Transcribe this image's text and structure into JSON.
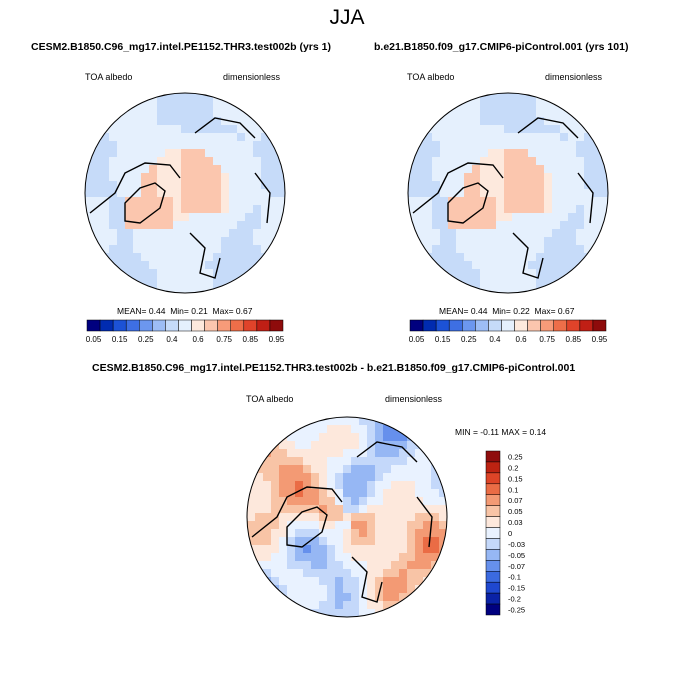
{
  "figure": {
    "title": "JJA",
    "colors": {
      "abs_scale": [
        "#00007f",
        "#002bb0",
        "#1c52d6",
        "#3e6fe3",
        "#6c97ef",
        "#9dbdf5",
        "#c6dbf9",
        "#e5f0fd",
        "#fde9dd",
        "#fbc6ae",
        "#f79b79",
        "#ee6e49",
        "#e0432a",
        "#c01f15",
        "#8e0b0b"
      ],
      "diff_scale": [
        "#00007f",
        "#0a22a6",
        "#1f48cf",
        "#3b6ae0",
        "#6690ec",
        "#96b7f4",
        "#c4d8fa",
        "#e9f2ff",
        "#fde8dc",
        "#f8c4a6",
        "#f39a74",
        "#ea6c45",
        "#dd4427",
        "#bd2312",
        "#8f0d0d"
      ],
      "land_outline": "#000000"
    }
  },
  "chart_data": [
    {
      "type": "heatmap",
      "projection": "north-polar-stereographic",
      "title": "CESM2.B1850.C96_mg17.intel.PE1152.THR3.test002b (yrs 1)",
      "left_label": "TOA albedo",
      "right_label": "dimensionless",
      "stats": {
        "mean_label": "MEAN=",
        "mean": "0.44",
        "min_label": "Min=",
        "min": "0.21",
        "max_label": "Max=",
        "max": "0.67"
      },
      "colorbar": {
        "orientation": "horizontal",
        "ticks": [
          "0.05",
          "0.15",
          "0.25",
          "0.4",
          "0.6",
          "0.75",
          "0.85",
          "0.95"
        ]
      }
    },
    {
      "type": "heatmap",
      "projection": "north-polar-stereographic",
      "title": "b.e21.B1850.f09_g17.CMIP6-piControl.001 (yrs 101)",
      "left_label": "TOA albedo",
      "right_label": "dimensionless",
      "stats": {
        "mean_label": "MEAN=",
        "mean": "0.44",
        "min_label": "Min=",
        "min": "0.22",
        "max_label": "Max=",
        "max": "0.67"
      },
      "colorbar": {
        "orientation": "horizontal",
        "ticks": [
          "0.05",
          "0.15",
          "0.25",
          "0.4",
          "0.6",
          "0.75",
          "0.85",
          "0.95"
        ]
      }
    },
    {
      "type": "heatmap",
      "projection": "north-polar-stereographic",
      "title": "CESM2.B1850.C96_mg17.intel.PE1152.THR3.test002b - b.e21.B1850.f09_g17.CMIP6-piControl.001",
      "left_label": "TOA albedo",
      "right_label": "dimensionless",
      "stats": {
        "min_label": "MIN =",
        "min": "-0.11",
        "max_label": "MAX =",
        "max": "0.14"
      },
      "colorbar": {
        "orientation": "vertical",
        "ticks": [
          "0.25",
          "0.2",
          "0.15",
          "0.1",
          "0.07",
          "0.05",
          "0.03",
          "0",
          "-0.03",
          "-0.05",
          "-0.07",
          "-0.1",
          "-0.15",
          "-0.2",
          "-0.25"
        ]
      }
    }
  ]
}
